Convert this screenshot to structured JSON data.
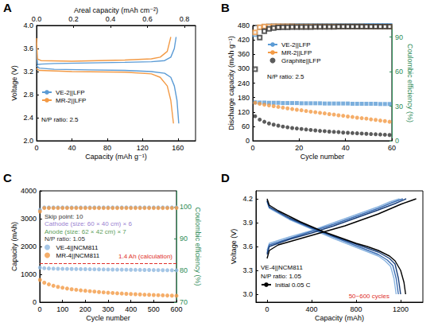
{
  "chart_data": [
    {
      "title": "A",
      "type": "line",
      "grid": false,
      "xlabel": "Capacity (mAh g⁻¹)",
      "x2label": "Areal capacity (mAh cm⁻²)",
      "ylabel": "Voltage (V)",
      "xlim": [
        0,
        180
      ],
      "xticks": [
        0,
        40,
        80,
        120,
        160
      ],
      "x2lim": [
        0,
        0.86
      ],
      "x2ticks": [
        {
          "value": 0,
          "label": "0.0"
        },
        0.2,
        0.4,
        0.6,
        0.8
      ],
      "ylim": [
        2,
        4
      ],
      "yticks": [
        {
          "value": 2,
          "label": "2.0"
        },
        2.4,
        2.8,
        3.2,
        3.6,
        {
          "value": 4,
          "label": "4.0"
        }
      ],
      "legend": "lower left",
      "annotations": [
        {
          "text": "N/P ratio: 2.5"
        }
      ],
      "series": [
        {
          "name": "VE-2||LFP",
          "color": "#5b9bd5",
          "x": [
            0,
            1,
            5,
            20,
            60,
            100,
            130,
            145,
            152,
            156,
            158,
            null,
            0,
            3,
            20,
            60,
            100,
            130,
            145,
            152,
            156,
            159,
            161
          ],
          "values": [
            3.6,
            3.32,
            3.33,
            3.34,
            3.35,
            3.36,
            3.37,
            3.39,
            3.45,
            3.6,
            3.8,
            null,
            3.3,
            3.26,
            3.24,
            3.23,
            3.22,
            3.2,
            3.17,
            3.1,
            2.95,
            2.7,
            2.3
          ]
        },
        {
          "name": "MR-2||LFP",
          "color": "#f39a45",
          "x": [
            0,
            1,
            5,
            40,
            100,
            130,
            140,
            148,
            152,
            null,
            0,
            3,
            40,
            100,
            130,
            140,
            148,
            152,
            155
          ],
          "values": [
            3.78,
            3.42,
            3.39,
            3.38,
            3.4,
            3.42,
            3.45,
            3.55,
            3.8,
            null,
            3.25,
            3.22,
            3.2,
            3.19,
            3.16,
            3.1,
            2.95,
            2.7,
            2.3
          ]
        }
      ]
    },
    {
      "title": "B",
      "type": "scatter",
      "grid": false,
      "xlabel": "Cycle number",
      "ylabel": "Discharge capacity (mAh g⁻¹)",
      "y2label": "Coulombic efficiency (%)",
      "xlim": [
        0,
        60
      ],
      "xticks": [
        0,
        20,
        40,
        60
      ],
      "ylim": [
        0,
        480
      ],
      "yticks": [
        0,
        60,
        120,
        180,
        240,
        300,
        360,
        420,
        480
      ],
      "y2lim": [
        0,
        100
      ],
      "y2ticks": [
        0,
        30,
        60,
        90
      ],
      "legend": "center left",
      "annotations": [
        {
          "text": "N/P ratio: 2.5"
        }
      ],
      "x": [
        1,
        3,
        5,
        7,
        9,
        11,
        13,
        15,
        17,
        19,
        21,
        23,
        25,
        27,
        29,
        31,
        33,
        35,
        37,
        39,
        41,
        43,
        45,
        47,
        49,
        51,
        53,
        55,
        57,
        59
      ],
      "series": [
        {
          "name": "VE-2||LFP",
          "color": "#5b9bd5",
          "marker": "square",
          "values": [
            160,
            159,
            159,
            158,
            158,
            158,
            157,
            157,
            157,
            157,
            156,
            156,
            156,
            156,
            156,
            155,
            155,
            155,
            155,
            155,
            155,
            154,
            154,
            154,
            154,
            154,
            154,
            153,
            153,
            153
          ]
        },
        {
          "name": "MR-2||LFP",
          "color": "#f39a45",
          "marker": "circle",
          "values": [
            158,
            154,
            150,
            147,
            144,
            141,
            138,
            135,
            132,
            129,
            127,
            124,
            121,
            119,
            116,
            114,
            111,
            109,
            106,
            104,
            101,
            99,
            96,
            94,
            92,
            89,
            87,
            84,
            82,
            79
          ]
        },
        {
          "name": "Graphite||LFP",
          "color": "#333333",
          "marker": "circle",
          "values": [
            102,
            88,
            79,
            72,
            67,
            63,
            59,
            56,
            53,
            51,
            49,
            47,
            45,
            43,
            41,
            40,
            38,
            37,
            36,
            34,
            33,
            32,
            31,
            30,
            29,
            28,
            27,
            26,
            25,
            24
          ]
        },
        {
          "color": "#5b9bd5",
          "marker": "open_square",
          "axis": "y2",
          "values": [
            92.5,
            98.2,
            99.0,
            99.3,
            99.4,
            99.5,
            99.5,
            99.5,
            99.6,
            99.6,
            99.6,
            99.6,
            99.6,
            99.6,
            99.7,
            99.7,
            99.7,
            99.7,
            99.7,
            99.7,
            99.7,
            99.7,
            99.7,
            99.7,
            99.7,
            99.7,
            99.7,
            99.7,
            99.7,
            99.7
          ]
        },
        {
          "color": "#f39a45",
          "marker": "open_square",
          "axis": "y2",
          "values": [
            94.0,
            98.5,
            99.1,
            99.2,
            99.3,
            99.3,
            99.3,
            99.3,
            99.3,
            99.2,
            99.2,
            99.2,
            99.2,
            99.2,
            99.2,
            99.2,
            99.1,
            99.1,
            99.1,
            99.1,
            99.1,
            99.1,
            99.1,
            99.1,
            99.0,
            99.0,
            99.0,
            99.0,
            99.0,
            99.0
          ]
        },
        {
          "color": "#333333",
          "marker": "open_square",
          "axis": "y2",
          "values": [
            62.0,
            89.5,
            95.0,
            97.0,
            97.8,
            98.2,
            98.4,
            98.5,
            98.6,
            98.6,
            98.7,
            98.7,
            98.7,
            98.8,
            98.8,
            98.8,
            98.8,
            98.8,
            98.9,
            98.9,
            98.9,
            98.9,
            98.9,
            98.9,
            98.9,
            98.9,
            98.9,
            98.9,
            98.9,
            98.9
          ]
        }
      ]
    },
    {
      "title": "C",
      "type": "scatter",
      "grid": false,
      "xlabel": "Cycle number",
      "ylabel": "Capacity (mAh)",
      "y2label": "Coulombic efficiency (%)",
      "xlim": [
        0,
        600
      ],
      "xticks": [
        0,
        100,
        200,
        300,
        400,
        500,
        600
      ],
      "ylim": [
        0,
        4000
      ],
      "yticks": [
        0,
        1000,
        2000,
        3000,
        4000
      ],
      "y2lim": [
        70,
        105
      ],
      "y2ticks": [
        70,
        80,
        90,
        100
      ],
      "legend": "center left",
      "annotations": [
        {
          "text": "Skip point: 10",
          "color": "#333333"
        },
        {
          "text": "Cathode (size: 60 × 40 cm) × 6",
          "color": "#9a7fd1"
        },
        {
          "text": "Anode (size: 62 × 42 cm) × 7",
          "color": "#5a9e5a"
        },
        {
          "text": "N/P ratio: 1.05",
          "color": "#333333"
        }
      ],
      "reference": {
        "value": 1400,
        "label": "1.4 Ah (calculation)",
        "color": "#e0302a",
        "line_style": "dashed"
      },
      "x": [
        1,
        20,
        40,
        60,
        80,
        100,
        120,
        140,
        160,
        180,
        200,
        220,
        240,
        260,
        280,
        300,
        320,
        340,
        360,
        380,
        400,
        420,
        440,
        460,
        480,
        500,
        520,
        540,
        560,
        580,
        600
      ],
      "series": [
        {
          "name": "VE-4||NCM811",
          "color": "#8fb8e0",
          "marker": "circle",
          "values": [
            1240,
            1220,
            1210,
            1205,
            1200,
            1198,
            1195,
            1192,
            1190,
            1188,
            1185,
            1183,
            1180,
            1178,
            1176,
            1174,
            1172,
            1170,
            1168,
            1166,
            1164,
            1162,
            1160,
            1158,
            1156,
            1154,
            1152,
            1150,
            1148,
            1146,
            1144
          ]
        },
        {
          "name": "MR-4||NCM811",
          "color": "#f39a45",
          "marker": "circle",
          "values": [
            800,
            700,
            640,
            590,
            550,
            520,
            490,
            465,
            445,
            425,
            410,
            395,
            380,
            365,
            352,
            340,
            330,
            320,
            310,
            300,
            292,
            285,
            278,
            270,
            264,
            258,
            252,
            246,
            240,
            235,
            230
          ]
        },
        {
          "color": "#8fb8e0",
          "marker": "circle",
          "axis": "y2",
          "values": [
            99.0,
            99.8,
            99.8,
            99.8,
            99.8,
            99.8,
            99.8,
            99.8,
            99.8,
            99.8,
            99.8,
            99.8,
            99.8,
            99.8,
            99.8,
            99.8,
            99.8,
            99.8,
            99.8,
            99.8,
            99.8,
            99.8,
            99.8,
            99.8,
            99.8,
            99.8,
            99.8,
            99.8,
            99.8,
            99.8,
            99.8
          ]
        },
        {
          "color": "#f39a45",
          "marker": "circle",
          "axis": "y2",
          "values": [
            98.5,
            99.6,
            99.6,
            99.6,
            99.6,
            99.6,
            99.6,
            99.6,
            99.6,
            99.6,
            99.6,
            99.6,
            99.6,
            99.6,
            99.6,
            99.6,
            99.6,
            99.6,
            99.6,
            99.6,
            99.6,
            99.6,
            99.6,
            99.6,
            99.6,
            99.6,
            99.6,
            99.6,
            99.6,
            99.6,
            99.6
          ]
        }
      ]
    },
    {
      "title": "D",
      "type": "line",
      "grid": false,
      "xlabel": "Capacity (mAh)",
      "ylabel": "Voltage (V)",
      "xlim": [
        -100,
        1400
      ],
      "xticks": [
        0,
        400,
        800,
        1200
      ],
      "ylim": [
        2.9,
        4.3
      ],
      "yticks": [
        {
          "value": 3,
          "label": "3.0"
        },
        3.3,
        3.6,
        3.9,
        4.2
      ],
      "legend": "lower left",
      "annotations": [
        {
          "text": "VE-4||NCM811",
          "color": "#000000"
        },
        {
          "text": "N/P ratio: 1.05",
          "color": "#000000"
        },
        {
          "text": "50~600 cycles",
          "color": "#e0302a"
        }
      ],
      "series": [
        {
          "color": "#8ab4e0",
          "x": [
            0,
            20,
            200,
            400,
            600,
            800,
            1000,
            1100,
            1190,
            null,
            0,
            20,
            200,
            400,
            600,
            800,
            1000,
            1060,
            1110,
            1140,
            1160
          ],
          "values": [
            3.55,
            3.64,
            3.72,
            3.8,
            3.9,
            4.0,
            4.1,
            4.16,
            4.2,
            null,
            4.16,
            4.08,
            3.94,
            3.82,
            3.7,
            3.59,
            3.48,
            3.42,
            3.35,
            3.2,
            3.0
          ]
        },
        {
          "color": "#3d6fb5",
          "x": [
            0,
            20,
            200,
            400,
            600,
            800,
            1000,
            1120,
            1220,
            null,
            0,
            20,
            200,
            400,
            600,
            800,
            1000,
            1080,
            1130,
            1160,
            1180
          ],
          "values": [
            3.52,
            3.62,
            3.7,
            3.79,
            3.88,
            3.98,
            4.08,
            4.15,
            4.2,
            null,
            4.17,
            4.09,
            3.95,
            3.83,
            3.72,
            3.61,
            3.5,
            3.43,
            3.36,
            3.2,
            3.0
          ]
        },
        {
          "color": "#1a3f7a",
          "x": [
            0,
            20,
            200,
            400,
            600,
            800,
            1000,
            1150,
            1250,
            null,
            0,
            20,
            200,
            400,
            600,
            800,
            1000,
            1100,
            1150,
            1180,
            1200
          ],
          "values": [
            3.5,
            3.6,
            3.69,
            3.77,
            3.86,
            3.96,
            4.06,
            4.14,
            4.2,
            null,
            4.18,
            4.1,
            3.96,
            3.84,
            3.73,
            3.63,
            3.53,
            3.45,
            3.38,
            3.2,
            3.0
          ]
        },
        {
          "name": "Initial 0.05 C",
          "color": "#000000",
          "x": [
            0,
            20,
            100,
            200,
            300,
            400,
            500,
            600,
            700,
            800,
            900,
            1000,
            1100,
            1200,
            1300,
            1340,
            null,
            0,
            20,
            100,
            200,
            300,
            400,
            500,
            600,
            700,
            800,
            900,
            1000,
            1100,
            1150,
            1200,
            1230,
            1245
          ],
          "values": [
            3.45,
            3.55,
            3.62,
            3.66,
            3.7,
            3.74,
            3.78,
            3.82,
            3.86,
            3.91,
            3.96,
            4.01,
            4.07,
            4.13,
            4.18,
            4.2,
            null,
            4.2,
            4.12,
            4.05,
            3.98,
            3.91,
            3.85,
            3.79,
            3.74,
            3.69,
            3.64,
            3.6,
            3.55,
            3.48,
            3.42,
            3.3,
            3.15,
            3.0
          ]
        }
      ]
    }
  ]
}
